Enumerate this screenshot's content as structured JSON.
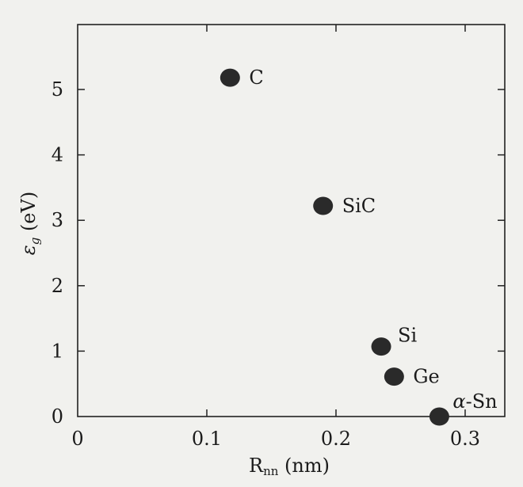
{
  "chart_data": {
    "type": "scatter",
    "title": "",
    "xlabel": "R",
    "xlabel_sub": "nn",
    "xlabel_unit": " (nm)",
    "ylabel": "ε",
    "ylabel_sub": "g",
    "ylabel_unit": " (eV)",
    "xlim": [
      0,
      0.33
    ],
    "ylim": [
      0,
      5.6
    ],
    "x_ticks": [
      0,
      0.1,
      0.2,
      0.3
    ],
    "x_tick_labels": [
      "0",
      "0.1",
      "0.2",
      "0.3"
    ],
    "y_ticks": [
      0,
      1,
      2,
      3,
      4,
      5
    ],
    "y_tick_labels": [
      "0",
      "1",
      "2",
      "3",
      "4",
      "5"
    ],
    "grid": false,
    "legend": "none",
    "marker_color": "#2a2a2a",
    "points": [
      {
        "label": "C",
        "x": 0.118,
        "y": 5.18
      },
      {
        "label": "SiC",
        "x": 0.19,
        "y": 3.22
      },
      {
        "label": "Si",
        "x": 0.235,
        "y": 1.07
      },
      {
        "label": "Ge",
        "x": 0.245,
        "y": 0.61
      },
      {
        "label": "α-Sn",
        "x": 0.28,
        "y": 0.0
      }
    ]
  }
}
